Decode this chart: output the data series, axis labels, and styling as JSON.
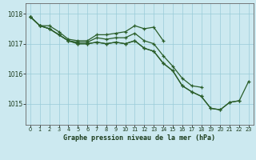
{
  "title": "Graphe pression niveau de la mer (hPa)",
  "hours": [
    0,
    1,
    2,
    3,
    4,
    5,
    6,
    7,
    8,
    9,
    10,
    11,
    12,
    13,
    14,
    15,
    16,
    17,
    18,
    19,
    20,
    21,
    22,
    23
  ],
  "line1": [
    1017.9,
    1017.6,
    1017.6,
    1017.4,
    1017.15,
    1017.1,
    1017.1,
    1017.3,
    1017.3,
    1017.35,
    1017.4,
    1017.6,
    1017.5,
    1017.55,
    1017.1,
    null,
    null,
    null,
    null,
    null,
    null,
    null,
    null,
    null
  ],
  "line2": [
    1017.9,
    1017.6,
    1017.5,
    1017.3,
    1017.1,
    1017.05,
    1017.05,
    1017.2,
    1017.15,
    1017.2,
    1017.2,
    1017.35,
    1017.1,
    1017.0,
    1016.6,
    1016.25,
    1015.85,
    1015.6,
    1015.55,
    null,
    null,
    null,
    null,
    null
  ],
  "line3": [
    1017.9,
    1017.6,
    1017.5,
    1017.3,
    1017.1,
    1017.0,
    1017.0,
    1017.05,
    1017.0,
    1017.05,
    1017.0,
    1017.1,
    1016.85,
    1016.75,
    1016.35,
    1016.1,
    1015.6,
    1015.4,
    1015.25,
    1014.85,
    1014.8,
    1015.05,
    1015.1,
    null
  ],
  "line4": [
    1017.9,
    1017.6,
    1017.5,
    1017.3,
    1017.1,
    1017.0,
    1017.0,
    1017.05,
    1017.0,
    1017.05,
    1017.0,
    1017.1,
    1016.85,
    1016.75,
    1016.35,
    1016.1,
    1015.6,
    1015.4,
    1015.25,
    1014.85,
    1014.8,
    1015.05,
    1015.1,
    1015.75
  ],
  "line_color": "#2a5e2a",
  "marker": "+",
  "bg_color": "#cce9f0",
  "grid_color": "#99ccd9",
  "axis_color": "#666666",
  "text_color": "#1a3a1a",
  "ylim_bottom": 1014.3,
  "ylim_top": 1018.35,
  "yticks": [
    1015,
    1016,
    1017,
    1018
  ],
  "xticks": [
    0,
    1,
    2,
    3,
    4,
    5,
    6,
    7,
    8,
    9,
    10,
    11,
    12,
    13,
    14,
    15,
    16,
    17,
    18,
    19,
    20,
    21,
    22,
    23
  ],
  "figwidth": 3.2,
  "figheight": 2.0,
  "dpi": 100
}
